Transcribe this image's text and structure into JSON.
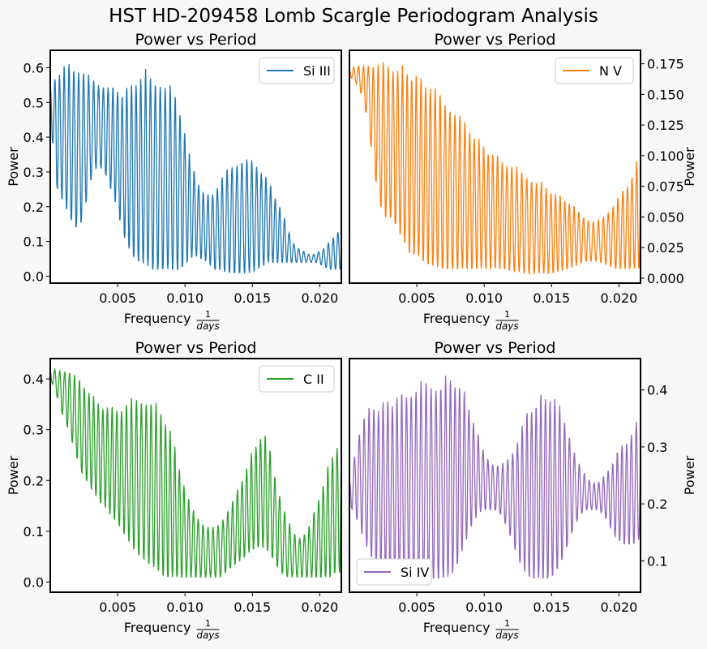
{
  "figure": {
    "suptitle": "HST HD-209458 Lomb Scargle Periodogram Analysis"
  },
  "chart_data": [
    {
      "type": "line",
      "title": "Power vs Period",
      "xlabel": "Frequency",
      "xlabel_fraction": {
        "numerator": "1",
        "denominator": "days"
      },
      "ylabel": "Power",
      "yaxis_side": "left",
      "xlim": [
        0.0,
        0.0216
      ],
      "ylim": [
        -0.02,
        0.65
      ],
      "xticks": [
        0.005,
        0.01,
        0.015,
        0.02
      ],
      "xtick_labels": [
        "0.005",
        "0.010",
        "0.015",
        "0.020"
      ],
      "yticks": [
        0.0,
        0.1,
        0.2,
        0.3,
        0.4,
        0.5,
        0.6
      ],
      "ytick_labels": [
        "0.0",
        "0.1",
        "0.2",
        "0.3",
        "0.4",
        "0.5",
        "0.6"
      ],
      "legend_position": "top-right",
      "grid": false,
      "series": [
        {
          "name": "Si III",
          "color": "#1f77b4",
          "x": [
            0.0,
            0.00045,
            0.0009,
            0.00135,
            0.0018,
            0.00225,
            0.0027,
            0.00315,
            0.0036,
            0.00405,
            0.0045,
            0.00495,
            0.0054,
            0.00585,
            0.0063,
            0.00675,
            0.0072,
            0.00765,
            0.0081,
            0.00855,
            0.009,
            0.00945,
            0.0099,
            0.01035,
            0.0108,
            0.01125,
            0.0117,
            0.01215,
            0.0126,
            0.01305,
            0.0135,
            0.01395,
            0.0144,
            0.01485,
            0.0153,
            0.01575,
            0.0162,
            0.01665,
            0.0171,
            0.01755,
            0.018,
            0.01845,
            0.0189,
            0.01935,
            0.0198,
            0.02025,
            0.0207,
            0.02115,
            0.0216
          ],
          "envelope": [
            0.55,
            0.59,
            0.61,
            0.62,
            0.62,
            0.61,
            0.59,
            0.57,
            0.56,
            0.56,
            0.55,
            0.55,
            0.54,
            0.56,
            0.58,
            0.59,
            0.6,
            0.59,
            0.58,
            0.56,
            0.55,
            0.52,
            0.45,
            0.35,
            0.3,
            0.25,
            0.24,
            0.25,
            0.28,
            0.31,
            0.33,
            0.34,
            0.35,
            0.34,
            0.33,
            0.31,
            0.28,
            0.24,
            0.2,
            0.15,
            0.1,
            0.08,
            0.07,
            0.06,
            0.07,
            0.08,
            0.1,
            0.12,
            0.15
          ],
          "minimum": [
            0.46,
            0.26,
            0.22,
            0.18,
            0.14,
            0.15,
            0.22,
            0.3,
            0.32,
            0.3,
            0.25,
            0.2,
            0.12,
            0.08,
            0.05,
            0.04,
            0.03,
            0.02,
            0.02,
            0.02,
            0.02,
            0.02,
            0.03,
            0.05,
            0.06,
            0.05,
            0.04,
            0.02,
            0.02,
            0.01,
            0.01,
            0.01,
            0.01,
            0.01,
            0.02,
            0.03,
            0.04,
            0.04,
            0.04,
            0.04,
            0.04,
            0.04,
            0.04,
            0.04,
            0.04,
            0.03,
            0.02,
            0.02,
            0.02
          ]
        }
      ]
    },
    {
      "type": "line",
      "title": "Power vs Period",
      "xlabel": "Frequency",
      "xlabel_fraction": {
        "numerator": "1",
        "denominator": "days"
      },
      "ylabel": "Power",
      "yaxis_side": "right",
      "xlim": [
        0.0,
        0.0216
      ],
      "ylim": [
        -0.004,
        0.186
      ],
      "xticks": [
        0.005,
        0.01,
        0.015,
        0.02
      ],
      "xtick_labels": [
        "0.005",
        "0.010",
        "0.015",
        "0.020"
      ],
      "yticks": [
        0.0,
        0.025,
        0.05,
        0.075,
        0.1,
        0.125,
        0.15,
        0.175
      ],
      "ytick_labels": [
        "0.000",
        "0.025",
        "0.050",
        "0.075",
        "0.100",
        "0.125",
        "0.150",
        "0.175"
      ],
      "legend_position": "top-right",
      "grid": false,
      "series": [
        {
          "name": "N V",
          "color": "#ff7f0e",
          "x": [
            0.0,
            0.00045,
            0.0009,
            0.00135,
            0.0018,
            0.00225,
            0.0027,
            0.00315,
            0.0036,
            0.00405,
            0.0045,
            0.00495,
            0.0054,
            0.00585,
            0.0063,
            0.00675,
            0.0072,
            0.00765,
            0.0081,
            0.00855,
            0.009,
            0.00945,
            0.0099,
            0.01035,
            0.0108,
            0.01125,
            0.0117,
            0.01215,
            0.0126,
            0.01305,
            0.0135,
            0.01395,
            0.0144,
            0.01485,
            0.0153,
            0.01575,
            0.0162,
            0.01665,
            0.0171,
            0.01755,
            0.018,
            0.01845,
            0.0189,
            0.01935,
            0.0198,
            0.02025,
            0.0207,
            0.02115,
            0.0216
          ],
          "envelope": [
            0.172,
            0.173,
            0.174,
            0.176,
            0.177,
            0.178,
            0.178,
            0.177,
            0.176,
            0.175,
            0.173,
            0.17,
            0.167,
            0.163,
            0.158,
            0.153,
            0.148,
            0.143,
            0.137,
            0.13,
            0.124,
            0.118,
            0.112,
            0.107,
            0.103,
            0.1,
            0.097,
            0.093,
            0.09,
            0.087,
            0.084,
            0.081,
            0.078,
            0.074,
            0.071,
            0.068,
            0.065,
            0.06,
            0.055,
            0.05,
            0.047,
            0.048,
            0.052,
            0.058,
            0.065,
            0.072,
            0.08,
            0.09,
            0.105
          ],
          "minimum": [
            0.165,
            0.16,
            0.15,
            0.13,
            0.09,
            0.06,
            0.05,
            0.05,
            0.04,
            0.03,
            0.02,
            0.02,
            0.015,
            0.012,
            0.01,
            0.008,
            0.008,
            0.008,
            0.008,
            0.008,
            0.008,
            0.008,
            0.008,
            0.008,
            0.008,
            0.008,
            0.007,
            0.006,
            0.005,
            0.004,
            0.004,
            0.004,
            0.004,
            0.004,
            0.005,
            0.006,
            0.008,
            0.01,
            0.012,
            0.014,
            0.014,
            0.014,
            0.012,
            0.01,
            0.008,
            0.008,
            0.008,
            0.008,
            0.008
          ]
        }
      ]
    },
    {
      "type": "line",
      "title": "Power vs Period",
      "xlabel": "Frequency",
      "xlabel_fraction": {
        "numerator": "1",
        "denominator": "days"
      },
      "ylabel": "Power",
      "yaxis_side": "left",
      "xlim": [
        0.0,
        0.0216
      ],
      "ylim": [
        -0.02,
        0.44
      ],
      "xticks": [
        0.005,
        0.01,
        0.015,
        0.02
      ],
      "xtick_labels": [
        "0.005",
        "0.010",
        "0.015",
        "0.020"
      ],
      "yticks": [
        0.0,
        0.1,
        0.2,
        0.3,
        0.4
      ],
      "ytick_labels": [
        "0.0",
        "0.1",
        "0.2",
        "0.3",
        "0.4"
      ],
      "legend_position": "top-right",
      "grid": false,
      "series": [
        {
          "name": "C II",
          "color": "#2ca02c",
          "x": [
            0.0,
            0.00045,
            0.0009,
            0.00135,
            0.0018,
            0.00225,
            0.0027,
            0.00315,
            0.0036,
            0.00405,
            0.0045,
            0.00495,
            0.0054,
            0.00585,
            0.0063,
            0.00675,
            0.0072,
            0.00765,
            0.0081,
            0.00855,
            0.009,
            0.00945,
            0.0099,
            0.01035,
            0.0108,
            0.01125,
            0.0117,
            0.01215,
            0.0126,
            0.01305,
            0.0135,
            0.01395,
            0.0144,
            0.01485,
            0.0153,
            0.01575,
            0.0162,
            0.01665,
            0.0171,
            0.01755,
            0.018,
            0.01845,
            0.0189,
            0.01935,
            0.0198,
            0.02025,
            0.0207,
            0.02115,
            0.0216
          ],
          "envelope": [
            0.42,
            0.42,
            0.42,
            0.42,
            0.41,
            0.4,
            0.39,
            0.37,
            0.36,
            0.35,
            0.35,
            0.35,
            0.35,
            0.36,
            0.37,
            0.37,
            0.37,
            0.36,
            0.35,
            0.33,
            0.3,
            0.25,
            0.2,
            0.16,
            0.14,
            0.12,
            0.11,
            0.11,
            0.12,
            0.14,
            0.16,
            0.19,
            0.22,
            0.25,
            0.28,
            0.3,
            0.28,
            0.22,
            0.17,
            0.13,
            0.1,
            0.09,
            0.1,
            0.12,
            0.16,
            0.2,
            0.24,
            0.27,
            0.3
          ],
          "minimum": [
            0.4,
            0.37,
            0.33,
            0.3,
            0.26,
            0.22,
            0.2,
            0.18,
            0.16,
            0.15,
            0.13,
            0.12,
            0.1,
            0.08,
            0.06,
            0.05,
            0.04,
            0.03,
            0.02,
            0.01,
            0.01,
            0.01,
            0.01,
            0.01,
            0.01,
            0.01,
            0.01,
            0.01,
            0.01,
            0.02,
            0.03,
            0.04,
            0.05,
            0.06,
            0.07,
            0.07,
            0.06,
            0.04,
            0.02,
            0.01,
            0.01,
            0.01,
            0.01,
            0.01,
            0.01,
            0.01,
            0.01,
            0.02,
            0.02
          ]
        }
      ]
    },
    {
      "type": "line",
      "title": "Power vs Period",
      "xlabel": "Frequency",
      "xlabel_fraction": {
        "numerator": "1",
        "denominator": "days"
      },
      "ylabel": "Power",
      "yaxis_side": "right",
      "xlim": [
        0.0,
        0.0216
      ],
      "ylim": [
        0.045,
        0.455
      ],
      "xticks": [
        0.005,
        0.01,
        0.015,
        0.02
      ],
      "xtick_labels": [
        "0.005",
        "0.010",
        "0.015",
        "0.020"
      ],
      "yticks": [
        0.1,
        0.2,
        0.3,
        0.4
      ],
      "ytick_labels": [
        "0.1",
        "0.2",
        "0.3",
        "0.4"
      ],
      "legend_position": "bottom-left",
      "grid": false,
      "series": [
        {
          "name": "Si IV",
          "color": "#9467bd",
          "x": [
            0.0,
            0.00045,
            0.0009,
            0.00135,
            0.0018,
            0.00225,
            0.0027,
            0.00315,
            0.0036,
            0.00405,
            0.0045,
            0.00495,
            0.0054,
            0.00585,
            0.0063,
            0.00675,
            0.0072,
            0.00765,
            0.0081,
            0.00855,
            0.009,
            0.00945,
            0.0099,
            0.01035,
            0.0108,
            0.01125,
            0.0117,
            0.01215,
            0.0126,
            0.01305,
            0.0135,
            0.01395,
            0.0144,
            0.01485,
            0.0153,
            0.01575,
            0.0162,
            0.01665,
            0.0171,
            0.01755,
            0.018,
            0.01845,
            0.0189,
            0.01935,
            0.0198,
            0.02025,
            0.0207,
            0.02115,
            0.0216
          ],
          "envelope": [
            0.24,
            0.3,
            0.35,
            0.37,
            0.38,
            0.38,
            0.39,
            0.39,
            0.4,
            0.4,
            0.41,
            0.41,
            0.42,
            0.42,
            0.42,
            0.42,
            0.43,
            0.43,
            0.42,
            0.4,
            0.37,
            0.33,
            0.3,
            0.28,
            0.27,
            0.27,
            0.28,
            0.3,
            0.33,
            0.36,
            0.38,
            0.39,
            0.4,
            0.4,
            0.39,
            0.37,
            0.34,
            0.3,
            0.27,
            0.25,
            0.24,
            0.24,
            0.25,
            0.27,
            0.29,
            0.31,
            0.32,
            0.34,
            0.36
          ],
          "minimum": [
            0.2,
            0.18,
            0.15,
            0.12,
            0.1,
            0.09,
            0.08,
            0.07,
            0.07,
            0.07,
            0.07,
            0.07,
            0.07,
            0.07,
            0.07,
            0.07,
            0.07,
            0.08,
            0.1,
            0.13,
            0.16,
            0.18,
            0.19,
            0.19,
            0.19,
            0.18,
            0.16,
            0.13,
            0.1,
            0.08,
            0.07,
            0.07,
            0.07,
            0.07,
            0.08,
            0.1,
            0.13,
            0.16,
            0.18,
            0.19,
            0.19,
            0.19,
            0.18,
            0.16,
            0.14,
            0.13,
            0.13,
            0.13,
            0.14
          ]
        }
      ]
    }
  ]
}
